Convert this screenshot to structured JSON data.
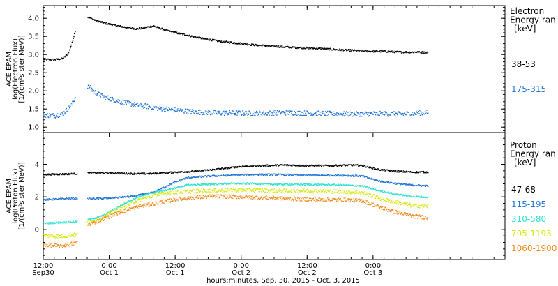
{
  "chart_data": [
    {
      "type": "scatter",
      "panel": "electron",
      "ylabel": [
        "ACE EPAM",
        "log(Electron Flux)",
        "[1/(cm²s ster MeV)]"
      ],
      "ylim": [
        0.85,
        4.35
      ],
      "yticks": [
        "1.0",
        "1.5",
        "2.0",
        "2.5",
        "3.0",
        "3.5",
        "4.0"
      ],
      "ytick_values": [
        1.0,
        1.5,
        2.0,
        2.5,
        3.0,
        3.5,
        4.0
      ],
      "legend_title": [
        "Electron",
        "Energy ran",
        "[keV]"
      ],
      "x_range_hours": [
        0,
        84
      ],
      "series": [
        {
          "name": "38-53",
          "color": "#000000",
          "gaps": [
            [
              5.8,
              8
            ]
          ],
          "points": [
            [
              0,
              2.88
            ],
            [
              2,
              2.87
            ],
            [
              3.5,
              2.9
            ],
            [
              4.5,
              3.05
            ],
            [
              5.2,
              3.35
            ],
            [
              5.7,
              3.65
            ],
            [
              8,
              4.05
            ],
            [
              9.5,
              3.95
            ],
            [
              11,
              3.88
            ],
            [
              13,
              3.82
            ],
            [
              15,
              3.76
            ],
            [
              17,
              3.72
            ],
            [
              18.5,
              3.76
            ],
            [
              20,
              3.8
            ],
            [
              21.5,
              3.72
            ],
            [
              23,
              3.65
            ],
            [
              26,
              3.55
            ],
            [
              29,
              3.45
            ],
            [
              32,
              3.38
            ],
            [
              35,
              3.33
            ],
            [
              38,
              3.28
            ],
            [
              41,
              3.25
            ],
            [
              44,
              3.22
            ],
            [
              47,
              3.2
            ],
            [
              50,
              3.18
            ],
            [
              53,
              3.15
            ],
            [
              56,
              3.13
            ],
            [
              59,
              3.1
            ],
            [
              62,
              3.1
            ],
            [
              65,
              3.08
            ],
            [
              68,
              3.08
            ],
            [
              70,
              3.07
            ]
          ]
        },
        {
          "name": "175-315",
          "color": "#1f74d6",
          "gaps": [
            [
              5.8,
              8
            ]
          ],
          "points": [
            [
              0,
              1.35
            ],
            [
              2,
              1.33
            ],
            [
              3.5,
              1.38
            ],
            [
              4.5,
              1.52
            ],
            [
              5.2,
              1.65
            ],
            [
              5.7,
              1.82
            ],
            [
              8,
              2.15
            ],
            [
              9.5,
              1.95
            ],
            [
              11,
              1.85
            ],
            [
              13,
              1.75
            ],
            [
              15,
              1.68
            ],
            [
              17,
              1.62
            ],
            [
              19,
              1.58
            ],
            [
              21,
              1.53
            ],
            [
              23,
              1.5
            ],
            [
              26,
              1.45
            ],
            [
              29,
              1.42
            ],
            [
              32,
              1.4
            ],
            [
              35,
              1.4
            ],
            [
              38,
              1.39
            ],
            [
              41,
              1.4
            ],
            [
              44,
              1.41
            ],
            [
              47,
              1.4
            ],
            [
              50,
              1.39
            ],
            [
              53,
              1.38
            ],
            [
              56,
              1.37
            ],
            [
              59,
              1.38
            ],
            [
              62,
              1.38
            ],
            [
              65,
              1.37
            ],
            [
              68,
              1.4
            ],
            [
              70,
              1.42
            ]
          ]
        }
      ]
    },
    {
      "type": "scatter",
      "panel": "proton",
      "ylabel": [
        "ACE EPAM",
        "log(Proton Flux)",
        "[1/(cm²s ster MeV)]"
      ],
      "ylim": [
        -1.85,
        5.95
      ],
      "yticks": [
        "0",
        "2",
        "4"
      ],
      "ytick_values": [
        0,
        2,
        4
      ],
      "legend_title": [
        "Proton",
        "Energy ran",
        "[keV]"
      ],
      "x_range_hours": [
        0,
        84
      ],
      "series": [
        {
          "name": "47-68",
          "color": "#000000",
          "gaps": [
            [
              6.2,
              8
            ]
          ],
          "points": [
            [
              0,
              3.4
            ],
            [
              3,
              3.42
            ],
            [
              6,
              3.45
            ],
            [
              8,
              3.5
            ],
            [
              12,
              3.5
            ],
            [
              16,
              3.45
            ],
            [
              20,
              3.45
            ],
            [
              24,
              3.55
            ],
            [
              28,
              3.6
            ],
            [
              32,
              3.75
            ],
            [
              36,
              3.9
            ],
            [
              40,
              3.95
            ],
            [
              44,
              3.98
            ],
            [
              48,
              3.95
            ],
            [
              52,
              3.95
            ],
            [
              56,
              3.98
            ],
            [
              58,
              3.95
            ],
            [
              61,
              3.7
            ],
            [
              64,
              3.6
            ],
            [
              67,
              3.55
            ],
            [
              70,
              3.55
            ]
          ]
        },
        {
          "name": "115-195",
          "color": "#1f74d6",
          "gaps": [
            [
              6.2,
              8
            ]
          ],
          "points": [
            [
              0,
              1.85
            ],
            [
              3,
              1.9
            ],
            [
              6,
              1.95
            ],
            [
              8,
              1.9
            ],
            [
              12,
              1.95
            ],
            [
              16,
              2.05
            ],
            [
              20,
              2.3
            ],
            [
              23,
              2.8
            ],
            [
              26,
              3.2
            ],
            [
              30,
              3.3
            ],
            [
              34,
              3.35
            ],
            [
              38,
              3.4
            ],
            [
              42,
              3.4
            ],
            [
              46,
              3.38
            ],
            [
              50,
              3.35
            ],
            [
              54,
              3.35
            ],
            [
              58,
              3.3
            ],
            [
              61,
              3.0
            ],
            [
              64,
              2.85
            ],
            [
              67,
              2.75
            ],
            [
              70,
              2.7
            ]
          ]
        },
        {
          "name": "310-580",
          "color": "#2fe0d0",
          "gaps": [
            [
              6.2,
              8
            ]
          ],
          "points": [
            [
              0,
              0.4
            ],
            [
              3,
              0.45
            ],
            [
              6,
              0.5
            ],
            [
              8,
              0.6
            ],
            [
              11,
              0.9
            ],
            [
              14,
              1.5
            ],
            [
              17,
              2.0
            ],
            [
              20,
              2.3
            ],
            [
              23,
              2.5
            ],
            [
              26,
              2.75
            ],
            [
              30,
              2.8
            ],
            [
              34,
              2.85
            ],
            [
              38,
              2.85
            ],
            [
              42,
              2.8
            ],
            [
              46,
              2.8
            ],
            [
              50,
              2.78
            ],
            [
              54,
              2.75
            ],
            [
              58,
              2.7
            ],
            [
              61,
              2.4
            ],
            [
              64,
              2.2
            ],
            [
              67,
              2.05
            ],
            [
              70,
              2.0
            ]
          ]
        },
        {
          "name": "795-1193",
          "color": "#d4e80f",
          "gaps": [
            [
              6.2,
              8
            ]
          ],
          "points": [
            [
              0,
              -0.35
            ],
            [
              3,
              -0.4
            ],
            [
              6,
              -0.3
            ],
            [
              8,
              0.4
            ],
            [
              11,
              0.8
            ],
            [
              14,
              1.3
            ],
            [
              17,
              1.8
            ],
            [
              20,
              2.1
            ],
            [
              23,
              2.3
            ],
            [
              26,
              2.35
            ],
            [
              30,
              2.4
            ],
            [
              34,
              2.45
            ],
            [
              38,
              2.45
            ],
            [
              42,
              2.4
            ],
            [
              46,
              2.4
            ],
            [
              50,
              2.38
            ],
            [
              54,
              2.35
            ],
            [
              58,
              2.3
            ],
            [
              61,
              1.95
            ],
            [
              64,
              1.7
            ],
            [
              67,
              1.5
            ],
            [
              70,
              1.45
            ]
          ]
        },
        {
          "name": "1060-1900",
          "color": "#f08a1c",
          "gaps": [
            [
              6.2,
              8
            ]
          ],
          "points": [
            [
              0,
              -0.9
            ],
            [
              3,
              -1.0
            ],
            [
              6,
              -0.8
            ],
            [
              8,
              0.3
            ],
            [
              11,
              0.7
            ],
            [
              14,
              1.1
            ],
            [
              17,
              1.4
            ],
            [
              20,
              1.6
            ],
            [
              23,
              1.8
            ],
            [
              26,
              1.95
            ],
            [
              30,
              2.05
            ],
            [
              34,
              2.05
            ],
            [
              38,
              2.0
            ],
            [
              42,
              1.95
            ],
            [
              46,
              1.9
            ],
            [
              50,
              1.85
            ],
            [
              54,
              1.85
            ],
            [
              58,
              1.8
            ],
            [
              61,
              1.4
            ],
            [
              64,
              1.1
            ],
            [
              67,
              0.85
            ],
            [
              70,
              0.75
            ]
          ]
        }
      ]
    }
  ],
  "xaxis": {
    "ticks": [
      {
        "hours": 0,
        "time": "12:00",
        "day": "Sep30"
      },
      {
        "hours": 12,
        "time": "0:00",
        "day": "Oct 1"
      },
      {
        "hours": 24,
        "time": "12:00",
        "day": "Oct 1"
      },
      {
        "hours": 36,
        "time": "0:00",
        "day": "Oct 2"
      },
      {
        "hours": 48,
        "time": "12:00",
        "day": "Oct 2"
      },
      {
        "hours": 60,
        "time": "0:00",
        "day": "Oct 3"
      }
    ],
    "label": "hours:minutes, Sep. 30, 2015 - Oct. 3, 2015"
  }
}
